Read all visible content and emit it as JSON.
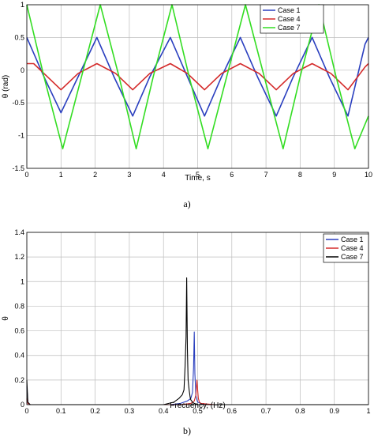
{
  "chart_data": [
    {
      "type": "line",
      "caption": "a)",
      "xlabel": "Time, s",
      "ylabel": "θ (rad)",
      "xlim": [
        0,
        10
      ],
      "ylim": [
        -1.5,
        1
      ],
      "xticks": [
        0,
        1,
        2,
        3,
        4,
        5,
        6,
        7,
        8,
        9,
        10
      ],
      "xtick_labels": [
        "0",
        "1",
        "2",
        "3",
        "4",
        "5",
        "6",
        "7",
        "8",
        "9",
        "10"
      ],
      "yticks": [
        1,
        0.5,
        0,
        -0.5,
        -1,
        -1.5
      ],
      "ytick_labels": [
        "1",
        "0.5",
        "0",
        "-0.5",
        "-1",
        "-1.5"
      ],
      "grid": true,
      "legend_position": "top-right",
      "series": [
        {
          "name": "Case 1",
          "color": "#2a3fbf",
          "x": [
            0,
            0.5,
            1.0,
            1.5,
            2.05,
            2.55,
            3.1,
            3.6,
            4.2,
            4.7,
            5.2,
            5.7,
            6.25,
            6.75,
            7.3,
            7.8,
            8.35,
            8.85,
            9.4,
            9.9,
            10.0
          ],
          "y": [
            0.5,
            -0.1,
            -0.65,
            -0.1,
            0.5,
            -0.1,
            -0.7,
            -0.1,
            0.5,
            -0.1,
            -0.7,
            -0.1,
            0.5,
            -0.1,
            -0.7,
            -0.1,
            0.5,
            -0.1,
            -0.7,
            0.4,
            0.5
          ]
        },
        {
          "name": "Case 4",
          "color": "#d42a2a",
          "x": [
            0,
            0.2,
            0.5,
            1.0,
            1.5,
            2.05,
            2.6,
            3.1,
            3.6,
            4.2,
            4.7,
            5.2,
            5.7,
            6.25,
            6.8,
            7.3,
            7.8,
            8.35,
            8.9,
            9.4,
            9.9,
            10.0
          ],
          "y": [
            0.1,
            0.1,
            -0.05,
            -0.3,
            -0.05,
            0.1,
            -0.05,
            -0.3,
            -0.05,
            0.1,
            -0.05,
            -0.3,
            -0.05,
            0.1,
            -0.05,
            -0.3,
            -0.05,
            0.1,
            -0.05,
            -0.3,
            0.05,
            0.1
          ]
        },
        {
          "name": "Case 7",
          "color": "#33dd22",
          "x": [
            0,
            0.5,
            1.05,
            1.6,
            2.15,
            2.7,
            3.2,
            3.7,
            4.25,
            4.75,
            5.3,
            5.85,
            6.4,
            6.95,
            7.5,
            8.0,
            8.55,
            9.05,
            9.6,
            10.0
          ],
          "y": [
            1.0,
            -0.1,
            -1.2,
            -0.1,
            1.0,
            -0.1,
            -1.2,
            -0.1,
            1.0,
            -0.1,
            -1.2,
            -0.1,
            1.0,
            -0.1,
            -1.2,
            -0.1,
            1.0,
            -0.1,
            -1.2,
            -0.7
          ]
        }
      ]
    },
    {
      "type": "line",
      "caption": "b)",
      "xlabel": "Frecuency, (Hz)",
      "ylabel": "θ",
      "xlim": [
        0,
        1
      ],
      "ylim": [
        0,
        1.4
      ],
      "xticks": [
        0,
        0.1,
        0.2,
        0.3,
        0.4,
        0.5,
        0.6,
        0.7,
        0.8,
        0.9,
        1
      ],
      "xtick_labels": [
        "0",
        "0.1",
        "0.2",
        "0.3",
        "0.4",
        "0.5",
        "0.6",
        "0.7",
        "0.8",
        "0.9",
        "1"
      ],
      "yticks": [
        1.4,
        1.2,
        1,
        0.8,
        0.6,
        0.4,
        0.2,
        0
      ],
      "ytick_labels": [
        "1.4",
        "1.2",
        "1",
        "0.8",
        "0.6",
        "0.4",
        "0.2",
        "0"
      ],
      "grid": true,
      "legend_position": "top-right",
      "series": [
        {
          "name": "Case 1",
          "color": "#2a3fbf",
          "x": [
            0,
            0.003,
            0.01,
            0.42,
            0.45,
            0.47,
            0.48,
            0.485,
            0.488,
            0.49,
            0.492,
            0.495,
            0.5,
            0.52,
            0.6,
            1.0
          ],
          "y": [
            0.15,
            0.01,
            0.0,
            0.0,
            0.01,
            0.03,
            0.05,
            0.1,
            0.3,
            0.59,
            0.25,
            0.07,
            0.02,
            0.0,
            0.0,
            0.0
          ]
        },
        {
          "name": "Case 4",
          "color": "#d42a2a",
          "x": [
            0,
            0.003,
            0.01,
            0.45,
            0.48,
            0.49,
            0.495,
            0.498,
            0.5,
            0.502,
            0.505,
            0.51,
            0.55,
            1.0
          ],
          "y": [
            0.05,
            0.01,
            0.0,
            0.0,
            0.01,
            0.03,
            0.08,
            0.2,
            0.12,
            0.05,
            0.02,
            0.01,
            0.0,
            0.0
          ]
        },
        {
          "name": "Case 7",
          "color": "#000000",
          "x": [
            0,
            0.003,
            0.01,
            0.3,
            0.4,
            0.43,
            0.445,
            0.455,
            0.46,
            0.463,
            0.466,
            0.468,
            0.47,
            0.472,
            0.475,
            0.478,
            0.48,
            0.485,
            0.49,
            0.5,
            0.52,
            0.6,
            1.0
          ],
          "y": [
            0.2,
            0.02,
            0.0,
            0.0,
            0.0,
            0.02,
            0.05,
            0.08,
            0.12,
            0.3,
            0.55,
            1.03,
            0.45,
            0.2,
            0.12,
            0.06,
            0.04,
            0.02,
            0.01,
            0.0,
            0.0,
            0.0,
            0.0
          ]
        }
      ]
    }
  ]
}
